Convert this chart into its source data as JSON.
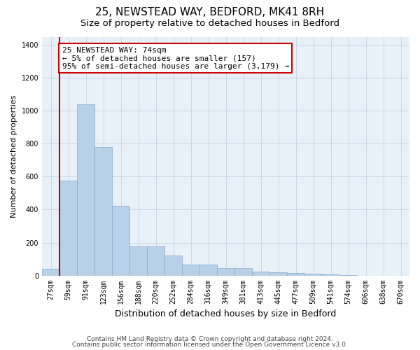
{
  "title": "25, NEWSTEAD WAY, BEDFORD, MK41 8RH",
  "subtitle": "Size of property relative to detached houses in Bedford",
  "xlabel": "Distribution of detached houses by size in Bedford",
  "ylabel": "Number of detached properties",
  "bin_labels": [
    "27sqm",
    "59sqm",
    "91sqm",
    "123sqm",
    "156sqm",
    "188sqm",
    "220sqm",
    "252sqm",
    "284sqm",
    "316sqm",
    "349sqm",
    "381sqm",
    "413sqm",
    "445sqm",
    "477sqm",
    "509sqm",
    "541sqm",
    "574sqm",
    "606sqm",
    "638sqm",
    "670sqm"
  ],
  "bar_values": [
    40,
    575,
    1040,
    780,
    425,
    175,
    175,
    120,
    65,
    65,
    45,
    45,
    25,
    20,
    15,
    10,
    5,
    2,
    0,
    0,
    0
  ],
  "bar_color": "#b8d0e8",
  "bar_edge_color": "#88aad0",
  "vline_x": 1,
  "vline_color": "#cc0000",
  "ylim": [
    0,
    1450
  ],
  "yticks": [
    0,
    200,
    400,
    600,
    800,
    1000,
    1200,
    1400
  ],
  "annotation_text": "25 NEWSTEAD WAY: 74sqm\n← 5% of detached houses are smaller (157)\n95% of semi-detached houses are larger (3,179) →",
  "annotation_box_color": "#ffffff",
  "annotation_box_edge_color": "#cc0000",
  "grid_color": "#c8d8e8",
  "plot_background_color": "#e8f0f8",
  "footer_line1": "Contains HM Land Registry data © Crown copyright and database right 2024.",
  "footer_line2": "Contains public sector information licensed under the Open Government Licence v3.0.",
  "title_fontsize": 11,
  "subtitle_fontsize": 9.5,
  "xlabel_fontsize": 9,
  "ylabel_fontsize": 8,
  "tick_fontsize": 7,
  "annotation_fontsize": 8,
  "footer_fontsize": 6.5
}
